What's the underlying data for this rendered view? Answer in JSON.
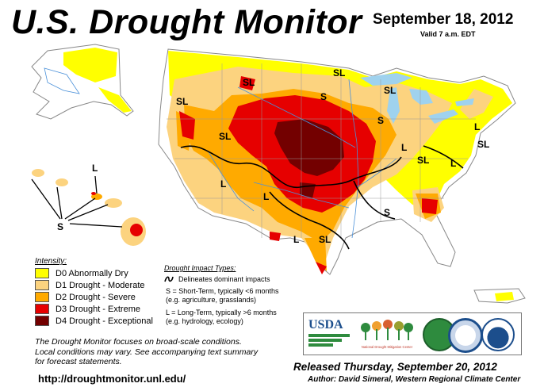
{
  "header": {
    "title": "U.S. Drought Monitor",
    "date": "September 18, 2012",
    "valid": "Valid 7 a.m. EDT"
  },
  "legend": {
    "heading": "Intensity:",
    "items": [
      {
        "label": "D0 Abnormally Dry",
        "color": "#ffff00"
      },
      {
        "label": "D1 Drought - Moderate",
        "color": "#fcd37f"
      },
      {
        "label": "D2 Drought - Severe",
        "color": "#ffaa00"
      },
      {
        "label": "D3 Drought - Extreme",
        "color": "#e60000"
      },
      {
        "label": "D4 Drought - Exceptional",
        "color": "#730000"
      }
    ]
  },
  "impact_types": {
    "heading": "Drought Impact Types:",
    "delineates": "Delineates dominant impacts",
    "short_term_1": "S = Short-Term, typically <6 months",
    "short_term_2": "(e.g. agriculture, grasslands)",
    "long_term_1": "L = Long-Term, typically >6 months",
    "long_term_2": "(e.g. hydrology, ecology)"
  },
  "map_labels": {
    "sl": "SL",
    "s": "S",
    "l": "L"
  },
  "colors": {
    "none": "#ffffff",
    "water": "#9fd2ee",
    "river": "#4a90d9",
    "boundary": "#999999",
    "impact_line": "#000000"
  },
  "logos": {
    "usda": "USDA",
    "ndmc": "National Drought Mitigation Center"
  },
  "footer": {
    "note_1": "The Drought Monitor focuses on broad-scale conditions.",
    "note_2": "Local conditions may vary. See accompanying text summary",
    "note_3": "for forecast statements.",
    "url": "http://droughtmonitor.unl.edu/",
    "released": "Released Thursday, September 20, 2012",
    "author": "Author: David Simeral, Western Regional Climate Center"
  }
}
